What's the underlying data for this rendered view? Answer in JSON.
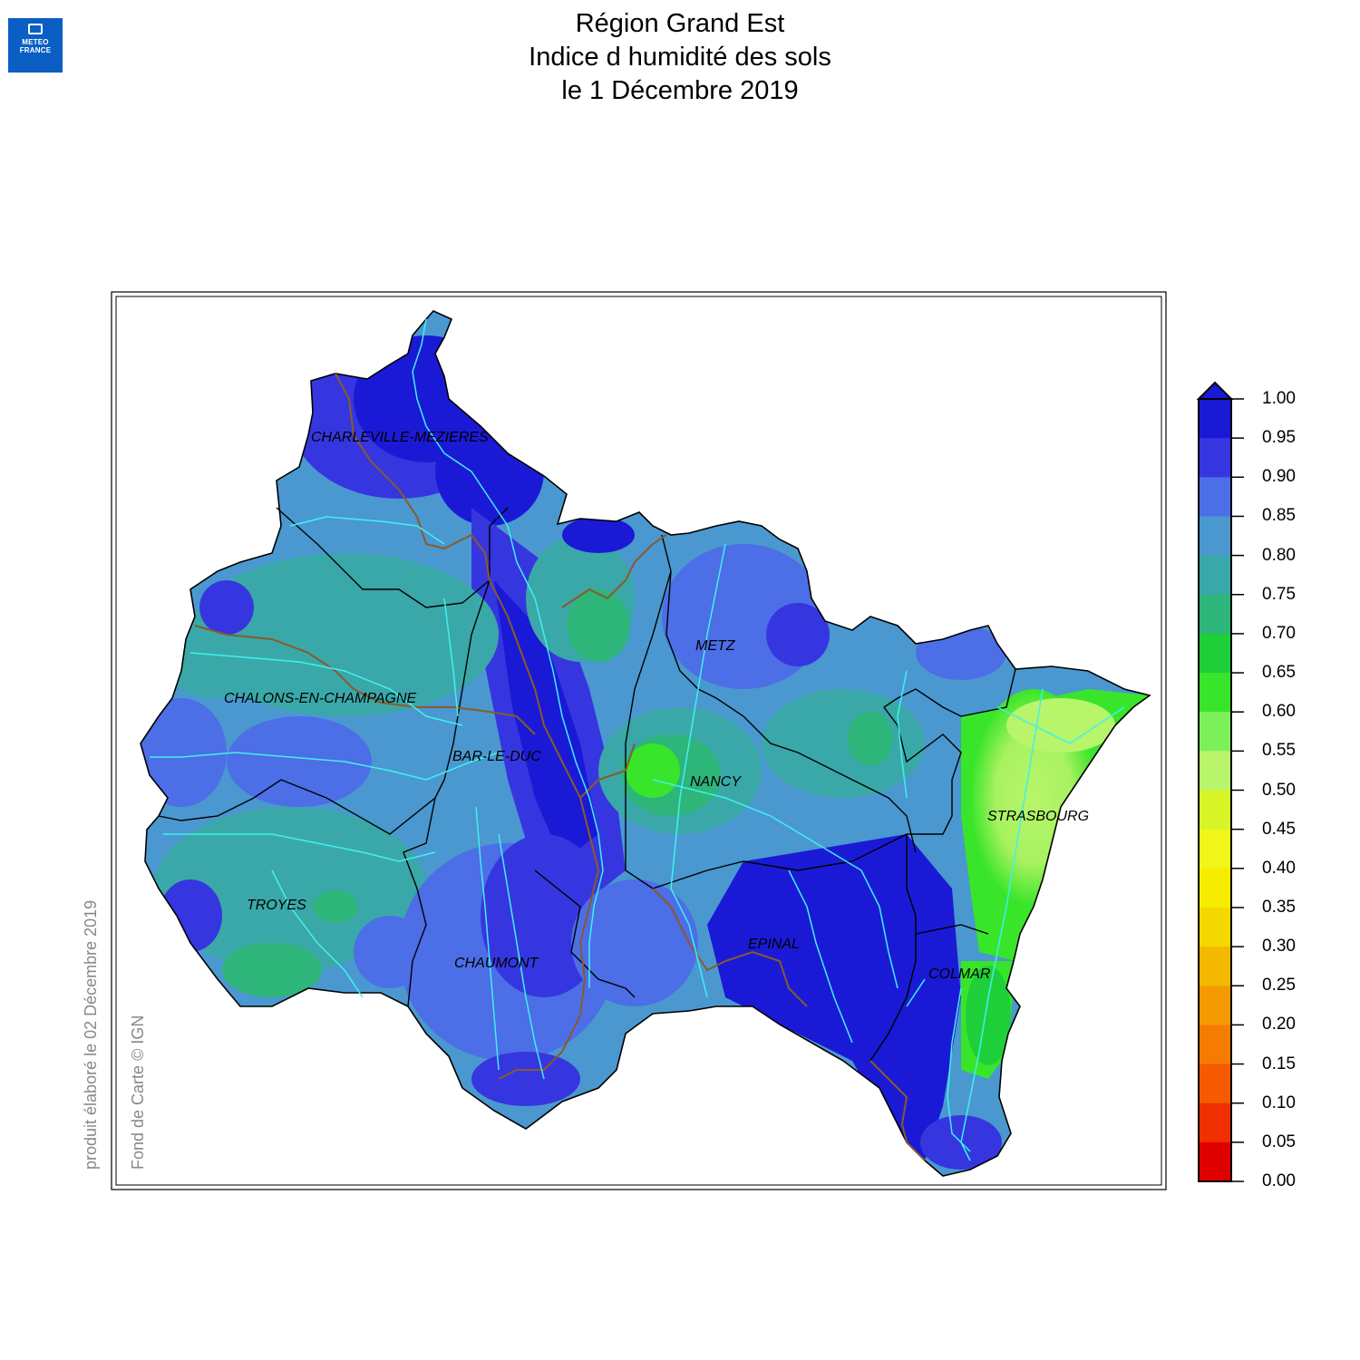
{
  "logo": {
    "line1": "METEO",
    "line2": "FRANCE"
  },
  "title": {
    "line1": "Région Grand Est",
    "line2": "Indice d humidité des sols",
    "line3": "le 1 Décembre 2019"
  },
  "credits": {
    "produced": "produit élaboré le 02 Décembre 2019",
    "basemap": "Fond de Carte © IGN"
  },
  "cities": [
    {
      "name": "CHARLEVILLE-MEZIERES"
    },
    {
      "name": "METZ"
    },
    {
      "name": "CHALONS-EN-CHAMPAGNE"
    },
    {
      "name": "BAR-LE-DUC"
    },
    {
      "name": "NANCY"
    },
    {
      "name": "STRASBOURG"
    },
    {
      "name": "TROYES"
    },
    {
      "name": "EPINAL"
    },
    {
      "name": "CHAUMONT"
    },
    {
      "name": "COLMAR"
    }
  ],
  "legend": {
    "labels": [
      "1.00",
      "0.95",
      "0.90",
      "0.85",
      "0.80",
      "0.75",
      "0.70",
      "0.65",
      "0.60",
      "0.55",
      "0.50",
      "0.45",
      "0.40",
      "0.35",
      "0.30",
      "0.25",
      "0.20",
      "0.15",
      "0.10",
      "0.05",
      "0.00"
    ],
    "colors": [
      "#1a1ad6",
      "#3636e0",
      "#4c6ee6",
      "#4a98cf",
      "#3aa8a8",
      "#2db57a",
      "#1fcf3a",
      "#38e52a",
      "#7cf05a",
      "#b8f56a",
      "#d8f52a",
      "#f0f51a",
      "#f5ec00",
      "#f5d800",
      "#f5b800",
      "#f59a00",
      "#f57c00",
      "#f55a00",
      "#f03000",
      "#e00000"
    ],
    "overflow_color": "#1a1ad6"
  }
}
